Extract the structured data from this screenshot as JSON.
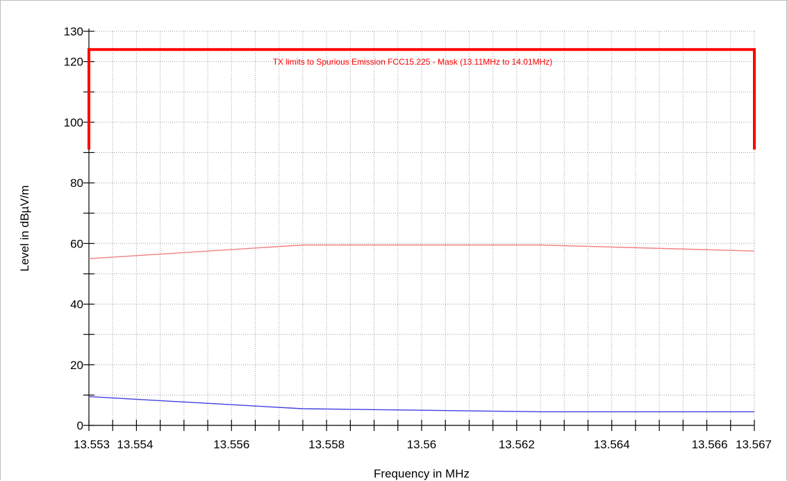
{
  "chart_data": {
    "type": "line",
    "xlabel": "Frequency in MHz",
    "ylabel": "Level in dBµV/m",
    "xlim": [
      13.553,
      13.567
    ],
    "ylim": [
      0,
      130
    ],
    "x_ticks": [
      13.553,
      13.554,
      13.556,
      13.558,
      13.56,
      13.562,
      13.564,
      13.566,
      13.567
    ],
    "x_tick_labels": [
      "13.553",
      "13.554",
      "13.556",
      "13.558",
      "13.56",
      "13.562",
      "13.564",
      "13.566",
      "13.567"
    ],
    "y_ticks": [
      0,
      20,
      40,
      60,
      80,
      100,
      120,
      130
    ],
    "y_tick_labels": [
      "0",
      "20",
      "40",
      "60",
      "80",
      "100",
      "120",
      "130"
    ],
    "grid": true,
    "annotation": "TX limits to Spurious Emission FCC15.225 - Mask (13.11MHz to 14.01MHz)",
    "series": [
      {
        "color": "#ff0000",
        "x": [
          13.553,
          13.553,
          13.567,
          13.567
        ],
        "values": [
          91,
          124,
          124,
          91
        ]
      },
      {
        "color": "#f08080",
        "x": [
          13.553,
          13.5575,
          13.5625,
          13.567
        ],
        "values": [
          55,
          59.5,
          59.5,
          57.5
        ]
      },
      {
        "color": "#4040e0",
        "x": [
          13.553,
          13.5575,
          13.5625,
          13.567
        ],
        "values": [
          9.5,
          5.5,
          4.5,
          4.5
        ]
      }
    ]
  }
}
